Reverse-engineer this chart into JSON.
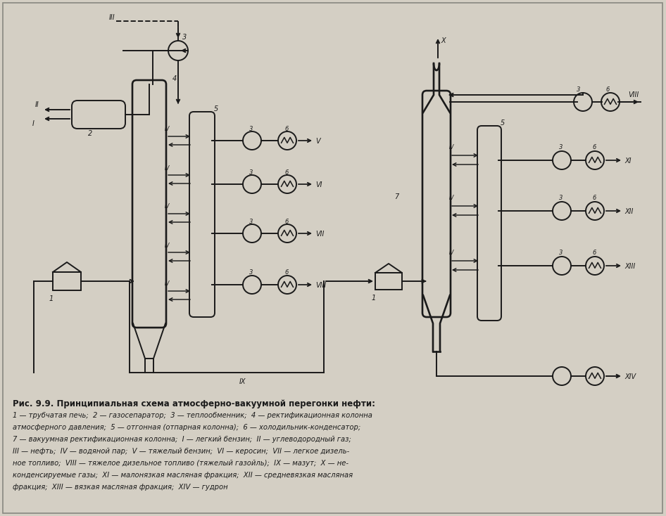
{
  "bg_color": "#d4cfc4",
  "line_color": "#1a1a1a",
  "title": "Рис. 9.9. Принципиальная схема атмосферно-вакуумной перегонки нефти:",
  "caption_lines": [
    "1 — трубчатая печь;  2 — газосепаратор;  3 — теплообменник;  4 — ректификационная колонна",
    "атмосферного давления;  5 — отгонная (отпарная колонна);  6 — холодильник-конденсатор;",
    "7 — вакуумная ректификационная колонна;  I — легкий бензин;  II — углеводородный газ;",
    "III — нефть;  IV — водяной пар;  V — тяжелый бензин;  VI — керосин;  VII — легкое дизель-",
    "ное топливо;  VIII — тяжелое дизельное топливо (тяжелый газойль);  IX — мазут;  X — не-",
    "конденсируемые газы;  XI — малонязкая масляная фракция;  XII — средневязкая масляная",
    "фракция;  XIII — вязкая масляная фракция;  XIV — гудрон"
  ]
}
